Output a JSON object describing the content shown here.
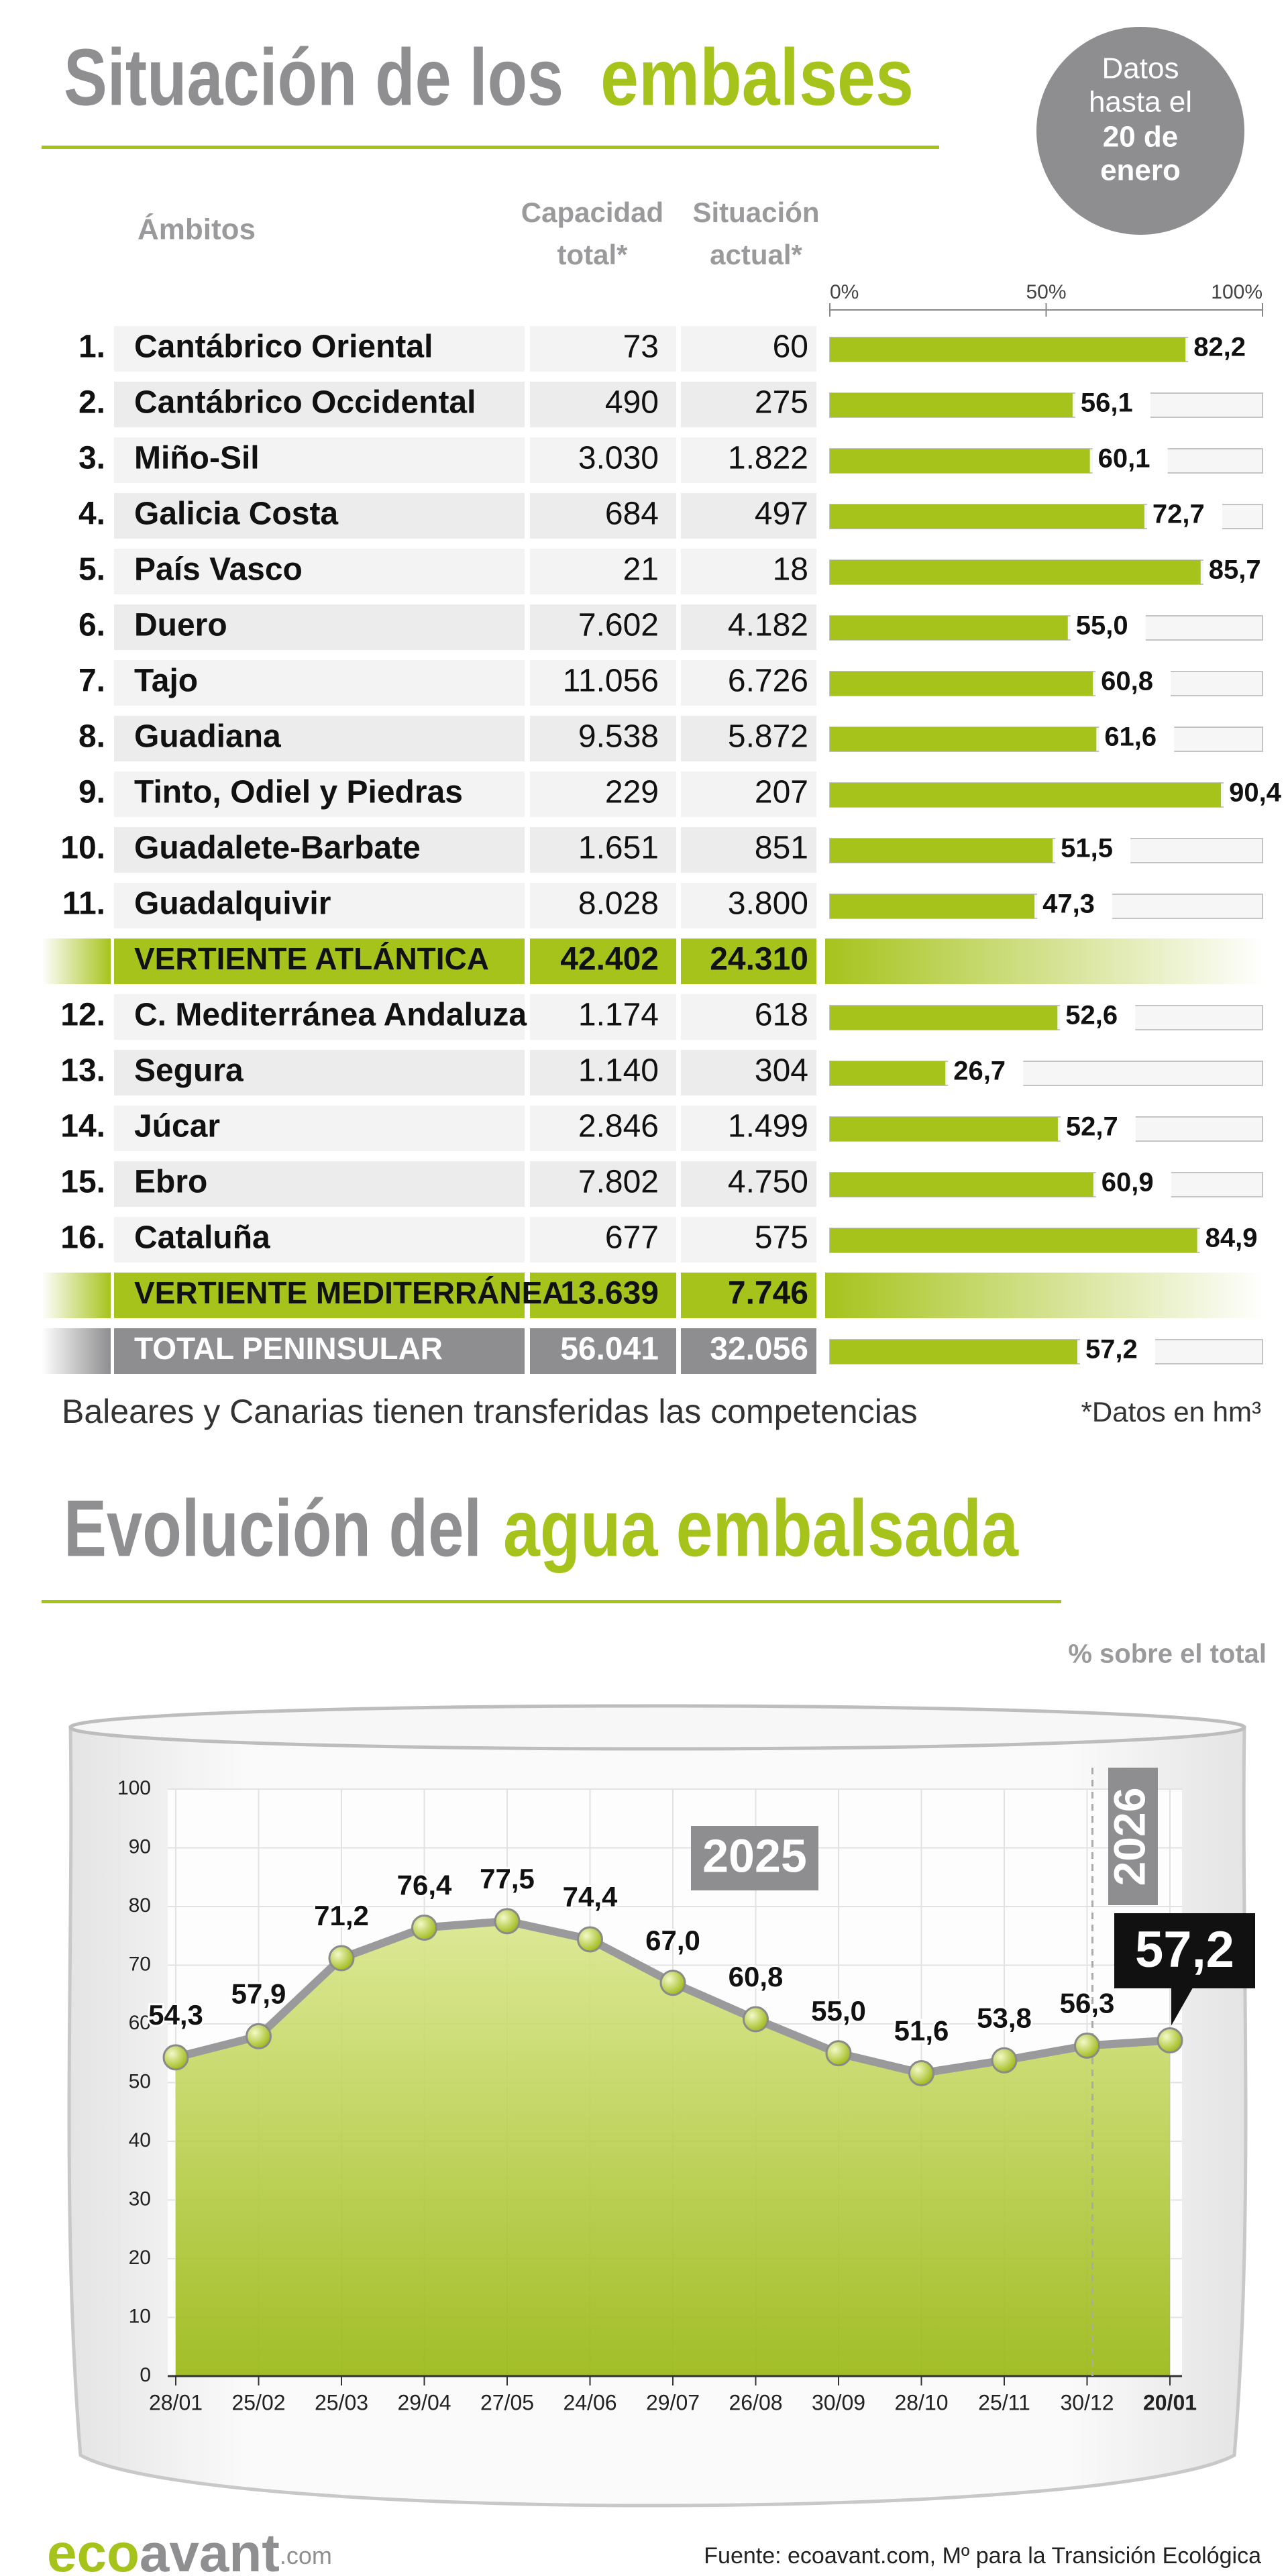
{
  "header": {
    "title": [
      "Situación de los",
      "embalses"
    ],
    "badge": [
      "Datos",
      "hasta el",
      "20 de",
      "enero"
    ]
  },
  "table": {
    "columns": {
      "name": "Ámbitos",
      "capacity": [
        "Capacidad",
        "total*"
      ],
      "current": [
        "Situación",
        "actual*"
      ]
    },
    "axis_lim": [
      0,
      100
    ],
    "axis_ticks": [
      {
        "value": 0,
        "label": "0%"
      },
      {
        "value": 50,
        "label": "50%"
      },
      {
        "value": 100,
        "label": "100%"
      }
    ],
    "rows": [
      {
        "number": "1.",
        "name": "Cantábrico Oriental",
        "capacity": "73",
        "current": "60",
        "percent": {
          "value": 82.2,
          "label": "82,2"
        }
      },
      {
        "number": "2.",
        "name": "Cantábrico Occidental",
        "capacity": "490",
        "current": "275",
        "percent": {
          "value": 56.1,
          "label": "56,1"
        }
      },
      {
        "number": "3.",
        "name": "Miño-Sil",
        "capacity": "3.030",
        "current": "1.822",
        "percent": {
          "value": 60.1,
          "label": "60,1"
        }
      },
      {
        "number": "4.",
        "name": "Galicia Costa",
        "capacity": "684",
        "current": "497",
        "percent": {
          "value": 72.7,
          "label": "72,7"
        }
      },
      {
        "number": "5.",
        "name": "País Vasco",
        "capacity": "21",
        "current": "18",
        "percent": {
          "value": 85.7,
          "label": "85,7"
        }
      },
      {
        "number": "6.",
        "name": "Duero",
        "capacity": "7.602",
        "current": "4.182",
        "percent": {
          "value": 55.0,
          "label": "55,0"
        }
      },
      {
        "number": "7.",
        "name": "Tajo",
        "capacity": "11.056",
        "current": "6.726",
        "percent": {
          "value": 60.8,
          "label": "60,8"
        }
      },
      {
        "number": "8.",
        "name": "Guadiana",
        "capacity": "9.538",
        "current": "5.872",
        "percent": {
          "value": 61.6,
          "label": "61,6"
        }
      },
      {
        "number": "9.",
        "name": "Tinto, Odiel y Piedras",
        "capacity": "229",
        "current": "207",
        "percent": {
          "value": 90.4,
          "label": "90,4"
        }
      },
      {
        "number": "10.",
        "name": "Guadalete-Barbate",
        "capacity": "1.651",
        "current": "851",
        "percent": {
          "value": 51.5,
          "label": "51,5"
        }
      },
      {
        "number": "11.",
        "name": "Guadalquivir",
        "capacity": "8.028",
        "current": "3.800",
        "percent": {
          "value": 47.3,
          "label": "47,3"
        }
      },
      {
        "name": "VERTIENTE ATLÁNTICA",
        "capacity": "42.402",
        "current": "24.310"
      },
      {
        "number": "12.",
        "name": "C. Mediterránea Andaluza",
        "capacity": "1.174",
        "current": "618",
        "percent": {
          "value": 52.6,
          "label": "52,6"
        }
      },
      {
        "number": "13.",
        "name": "Segura",
        "capacity": "1.140",
        "current": "304",
        "percent": {
          "value": 26.7,
          "label": "26,7"
        }
      },
      {
        "number": "14.",
        "name": "Júcar",
        "capacity": "2.846",
        "current": "1.499",
        "percent": {
          "value": 52.7,
          "label": "52,7"
        }
      },
      {
        "number": "15.",
        "name": "Ebro",
        "capacity": "7.802",
        "current": "4.750",
        "percent": {
          "value": 60.9,
          "label": "60,9"
        }
      },
      {
        "number": "16.",
        "name": "Cataluña",
        "capacity": "677",
        "current": "575",
        "percent": {
          "value": 84.9,
          "label": "84,9"
        }
      },
      {
        "name": "VERTIENTE MEDITERRÁNEA",
        "capacity": "13.639",
        "current": "7.746"
      },
      {
        "name": "TOTAL PENINSULAR",
        "capacity": "56.041",
        "current": "32.056",
        "percent": {
          "value": 57.2,
          "label": "57,2"
        }
      }
    ]
  },
  "notes": {
    "left": "Baleares y Canarias tienen transferidas las competencias",
    "right": "*Datos en hm³"
  },
  "chart_data": {
    "type": "line",
    "title": [
      "Evolución del",
      "agua embalsada"
    ],
    "subtitle": "% sobre el total",
    "categories": [
      "28/01",
      "25/02",
      "25/03",
      "29/04",
      "27/05",
      "24/06",
      "29/07",
      "26/08",
      "30/09",
      "28/10",
      "25/11",
      "30/12",
      "20/01"
    ],
    "values": [
      54.3,
      57.9,
      71.2,
      76.4,
      77.5,
      74.4,
      67.0,
      60.8,
      55.0,
      51.6,
      53.8,
      56.3,
      57.2
    ],
    "value_labels": [
      "54,3",
      "57,9",
      "71,2",
      "76,4",
      "77,5",
      "74,4",
      "67,0",
      "60,8",
      "55,0",
      "51,6",
      "53,8",
      "56,3",
      "57,2"
    ],
    "ylim": [
      0,
      100
    ],
    "yticks": [
      0,
      10,
      20,
      30,
      40,
      50,
      60,
      70,
      80,
      90,
      100
    ],
    "color": "#a6c31c",
    "line_color": "#9a9a9c",
    "grid": true,
    "annotations": [
      "2025",
      "2026"
    ]
  },
  "footer": {
    "logo": [
      "eco",
      "avant",
      ".com"
    ],
    "source": "Fuente: ecoavant.com, Mº para la Transición Ecológica"
  }
}
